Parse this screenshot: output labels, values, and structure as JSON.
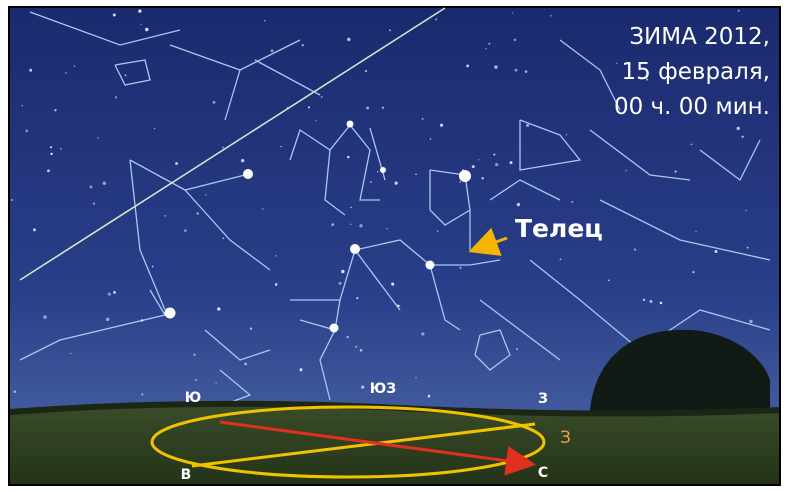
{
  "caption": {
    "lines": [
      "ЗИМА 2012,",
      "15 февраля,",
      "00 ч. 00 мин."
    ]
  },
  "constellation_label": "Телец",
  "horizon": {
    "labels": {
      "south": "Ю",
      "southwest": "ЮЗ",
      "west": "З",
      "east": "В",
      "north": "С"
    },
    "west_marker": "З"
  }
}
